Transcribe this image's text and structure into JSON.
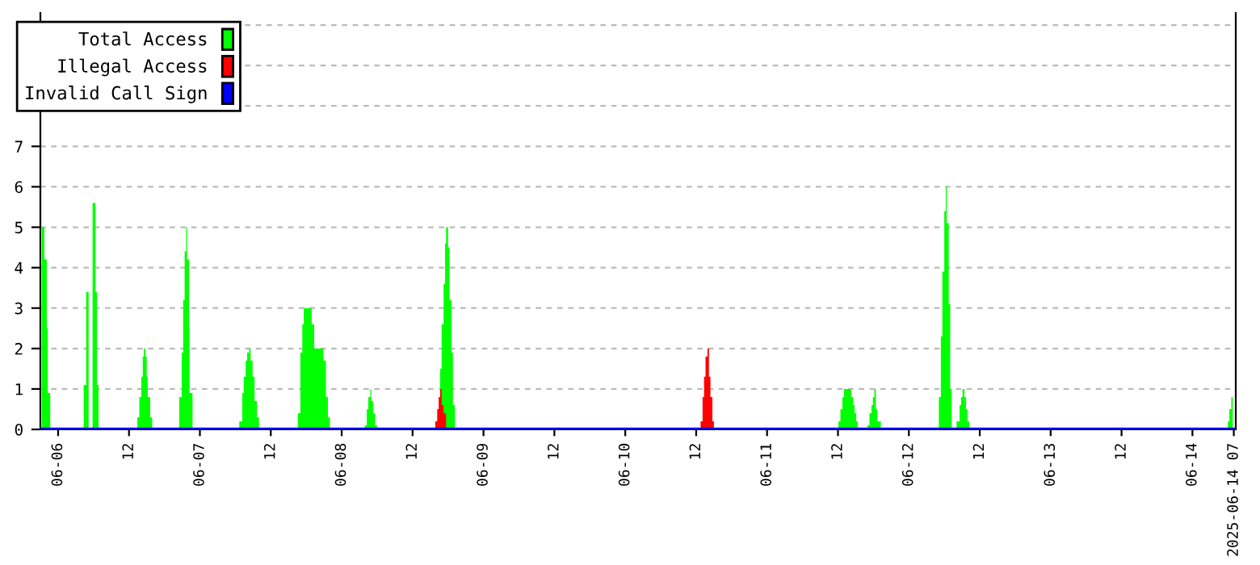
{
  "chart_data": {
    "type": "area",
    "legend": "top left",
    "grid": "y",
    "xlim": [
      "2025-06-05T21:00",
      "2025-06-14T07:20"
    ],
    "ylim": [
      0,
      10.3
    ],
    "yticks": [
      0,
      1,
      2,
      3,
      4,
      5,
      6,
      7,
      {
        "value": 8,
        "label": null
      },
      {
        "value": 9,
        "label": null
      },
      {
        "value": 10,
        "label": null
      }
    ],
    "xticks": [
      {
        "value": "2025-06-06T00:00",
        "label": "06-06"
      },
      {
        "value": "2025-06-06T12:00",
        "label": "12"
      },
      {
        "value": "2025-06-07T00:00",
        "label": "06-07"
      },
      {
        "value": "2025-06-07T12:00",
        "label": "12"
      },
      {
        "value": "2025-06-08T00:00",
        "label": "06-08"
      },
      {
        "value": "2025-06-08T12:00",
        "label": "12"
      },
      {
        "value": "2025-06-09T00:00",
        "label": "06-09"
      },
      {
        "value": "2025-06-09T12:00",
        "label": "12"
      },
      {
        "value": "2025-06-10T00:00",
        "label": "06-10"
      },
      {
        "value": "2025-06-10T12:00",
        "label": "12"
      },
      {
        "value": "2025-06-11T00:00",
        "label": "06-11"
      },
      {
        "value": "2025-06-11T12:00",
        "label": "12"
      },
      {
        "value": "2025-06-12T00:00",
        "label": "06-12"
      },
      {
        "value": "2025-06-12T12:00",
        "label": "12"
      },
      {
        "value": "2025-06-13T00:00",
        "label": "06-13"
      },
      {
        "value": "2025-06-13T12:00",
        "label": "12"
      },
      {
        "value": "2025-06-14T00:00",
        "label": "06-14"
      },
      {
        "value": "2025-06-14T07:00",
        "label": "2025-06-14 07"
      }
    ],
    "series": [
      {
        "name": "Total Access",
        "color": "#00ff00",
        "x": [
          "2025-06-05T21:15",
          "2025-06-05T21:40",
          "2025-06-05T22:05",
          "2025-06-05T22:15",
          "2025-06-05T22:40",
          "2025-06-06T04:20",
          "2025-06-06T04:45",
          "2025-06-06T05:10",
          "2025-06-06T05:50",
          "2025-06-06T06:20",
          "2025-06-06T06:35",
          "2025-06-06T06:50",
          "2025-06-06T13:25",
          "2025-06-06T13:45",
          "2025-06-06T14:05",
          "2025-06-06T14:20",
          "2025-06-06T14:30",
          "2025-06-06T14:45",
          "2025-06-06T15:00",
          "2025-06-06T15:10",
          "2025-06-06T15:35",
          "2025-06-06T15:55",
          "2025-06-06T20:30",
          "2025-06-06T20:55",
          "2025-06-06T21:10",
          "2025-06-06T21:25",
          "2025-06-06T21:40",
          "2025-06-06T21:50",
          "2025-06-06T22:10",
          "2025-06-06T22:15",
          "2025-06-06T22:45",
          "2025-06-07T06:40",
          "2025-06-07T07:10",
          "2025-06-07T07:25",
          "2025-06-07T07:45",
          "2025-06-07T08:00",
          "2025-06-07T08:20",
          "2025-06-07T08:35",
          "2025-06-07T08:55",
          "2025-06-07T09:15",
          "2025-06-07T09:40",
          "2025-06-07T10:00",
          "2025-06-07T16:35",
          "2025-06-07T17:00",
          "2025-06-07T17:20",
          "2025-06-07T17:35",
          "2025-06-07T18:55",
          "2025-06-07T19:20",
          "2025-06-07T20:55",
          "2025-06-07T21:20",
          "2025-06-07T21:40",
          "2025-06-07T22:00",
          "2025-06-08T03:55",
          "2025-06-08T04:15",
          "2025-06-08T04:30",
          "2025-06-08T04:50",
          "2025-06-08T05:00",
          "2025-06-08T05:20",
          "2025-06-08T05:40",
          "2025-06-08T06:00",
          "2025-06-08T16:40",
          "2025-06-08T16:55",
          "2025-06-08T17:15",
          "2025-06-08T17:30",
          "2025-06-08T17:40",
          "2025-06-08T18:00",
          "2025-06-08T18:15",
          "2025-06-08T18:35",
          "2025-06-08T18:50",
          "2025-06-08T19:10",
          "2025-06-11T12:05",
          "2025-06-11T12:25",
          "2025-06-11T12:45",
          "2025-06-11T13:00",
          "2025-06-11T14:15",
          "2025-06-11T14:35",
          "2025-06-11T14:50",
          "2025-06-11T15:05",
          "2025-06-11T15:20",
          "2025-06-11T17:00",
          "2025-06-11T17:20",
          "2025-06-11T17:40",
          "2025-06-11T17:55",
          "2025-06-11T18:10",
          "2025-06-11T18:25",
          "2025-06-11T18:40",
          "2025-06-11T19:15",
          "2025-06-12T05:05",
          "2025-06-12T05:25",
          "2025-06-12T05:40",
          "2025-06-12T06:00",
          "2025-06-12T06:15",
          "2025-06-12T06:25",
          "2025-06-12T06:45",
          "2025-06-12T07:00",
          "2025-06-12T07:15",
          "2025-06-12T08:05",
          "2025-06-12T08:35",
          "2025-06-12T08:50",
          "2025-06-12T09:05",
          "2025-06-12T09:25",
          "2025-06-12T09:40",
          "2025-06-12T09:55",
          "2025-06-12T10:15",
          "2025-06-14T06:00",
          "2025-06-14T06:15",
          "2025-06-14T06:35",
          "2025-06-14T06:50"
        ],
        "values": [
          5,
          4.2,
          2.5,
          0.9,
          0,
          1.1,
          3.4,
          null,
          5.6,
          3.4,
          1.1,
          0,
          0.3,
          0.8,
          1.3,
          1.8,
          2,
          1.8,
          1.3,
          0.8,
          0.3,
          0,
          0.8,
          1.9,
          3.2,
          4.4,
          5,
          4.2,
          2.5,
          0.9,
          0,
          0.2,
          0.9,
          1.3,
          1.7,
          1.9,
          2,
          1.7,
          1.3,
          0.7,
          0.3,
          0,
          0.4,
          1.9,
          2.6,
          3,
          2.6,
          2,
          1.7,
          0.8,
          0.3,
          0,
          0.1,
          0.5,
          0.8,
          1,
          0.7,
          0.4,
          0.1,
          0,
          1.5,
          2.6,
          3.6,
          4.6,
          5,
          4.5,
          3.2,
          1.9,
          0.6,
          0,
          0.2,
          0.5,
          0.8,
          1,
          0.8,
          0.6,
          0.4,
          0.2,
          0,
          0.1,
          0.4,
          0.6,
          0.8,
          1,
          0.5,
          0.2,
          0,
          0.8,
          2.3,
          3.9,
          5.4,
          6,
          5.1,
          3.1,
          1,
          0,
          0.2,
          0.6,
          0.8,
          1,
          0.8,
          0.5,
          0.2,
          0,
          0.2,
          0.5,
          0.8,
          1
        ]
      },
      {
        "name": "Illegal Access",
        "color": "#ff0000",
        "x": [
          "2025-06-08T15:50",
          "2025-06-08T16:10",
          "2025-06-08T16:25",
          "2025-06-08T16:40",
          "2025-06-08T16:55",
          "2025-06-08T17:15",
          "2025-06-08T17:40",
          "2025-06-10T12:45",
          "2025-06-10T13:05",
          "2025-06-10T13:20",
          "2025-06-10T13:35",
          "2025-06-10T13:55",
          "2025-06-10T14:10",
          "2025-06-10T14:25",
          "2025-06-10T14:45",
          "2025-06-10T15:00"
        ],
        "values": [
          0.2,
          0.5,
          0.8,
          1,
          0.6,
          0.4,
          0,
          0.2,
          0.8,
          1.3,
          1.8,
          2,
          1.3,
          0.8,
          0.2,
          0
        ]
      },
      {
        "name": "Invalid Call Sign",
        "color": "#0000ff",
        "type": "line",
        "x": [
          "2025-06-05T21:00",
          "2025-06-14T07:20"
        ],
        "values": [
          0,
          0
        ]
      }
    ]
  }
}
